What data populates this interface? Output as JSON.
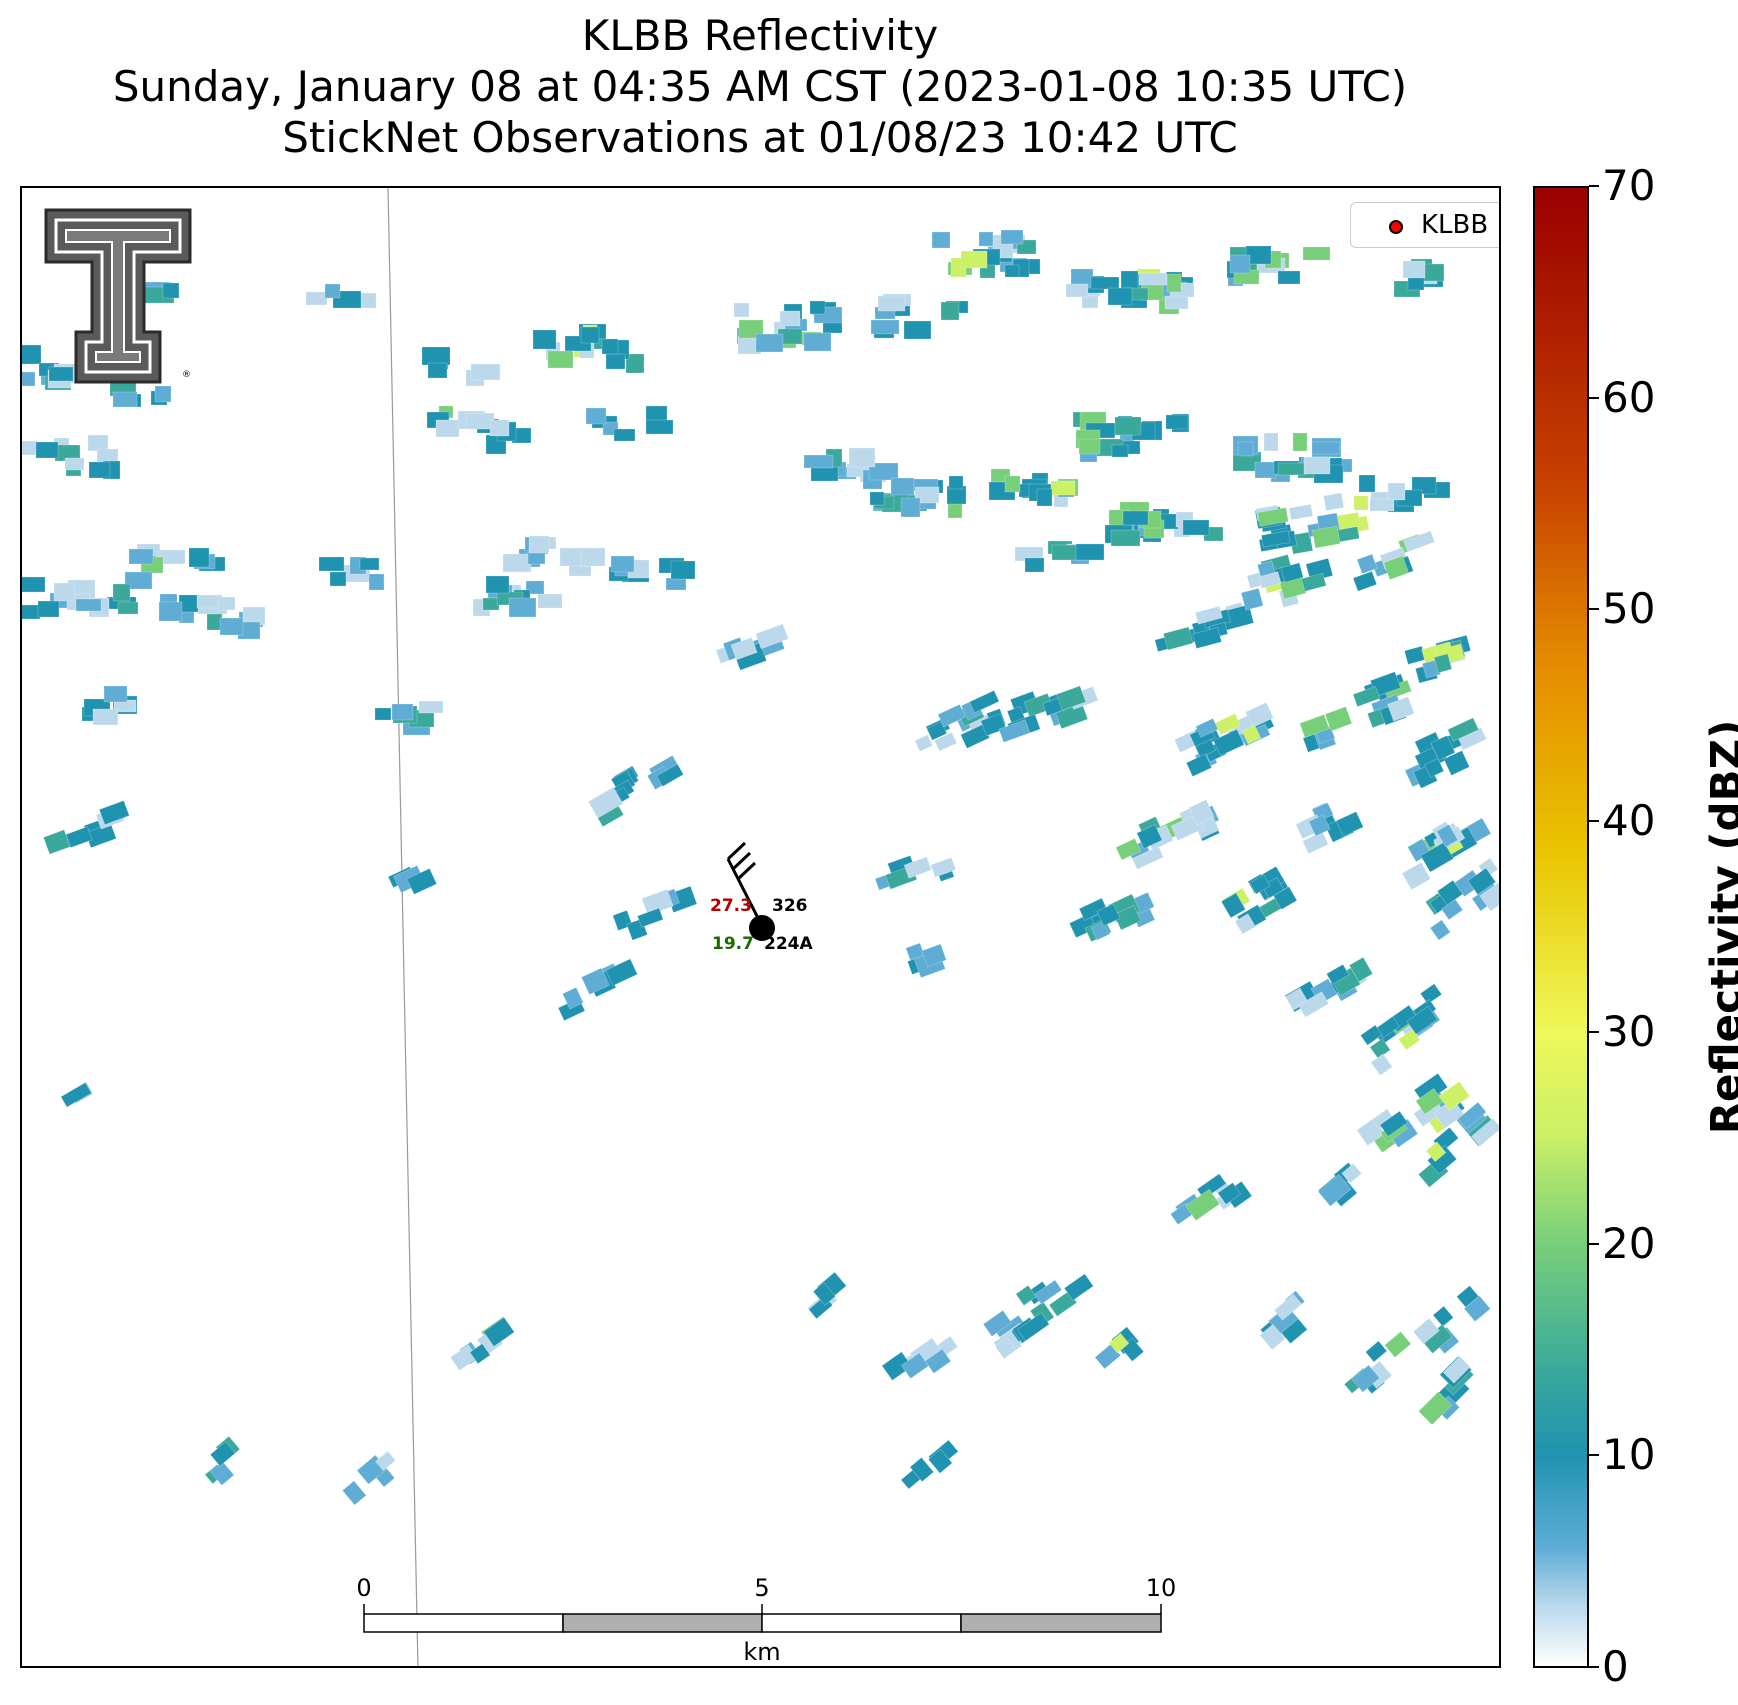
{
  "title": {
    "line1": "KLBB Reflectivity",
    "line2": "Sunday, January 08 at 04:35 AM CST (2023-01-08 10:35 UTC)",
    "line3": "StickNet Observations at 01/08/23 10:42 UTC"
  },
  "legend": {
    "label": "KLBB",
    "marker_color": "#ff0000"
  },
  "logo": {
    "name": "Texas Tech double-T logo",
    "mark": "®"
  },
  "station": {
    "temperature": "27.3",
    "pressure": "326",
    "dewpoint": "19.7",
    "id": "224A",
    "wind_barb": "flag-barb"
  },
  "scalebar": {
    "ticks": [
      "0",
      "5",
      "10"
    ],
    "unit": "km"
  },
  "colorbar": {
    "title": "Reflectivity (dBZ)",
    "ticks": [
      "0",
      "10",
      "20",
      "30",
      "40",
      "50",
      "60",
      "70"
    ],
    "min": 0,
    "max": 70
  },
  "colors": {
    "light_blue": "#bcd9ec",
    "blue": "#5fadd5",
    "teal": "#2093b0",
    "green_teal": "#3aa99c",
    "green": "#78cf7a",
    "yellow_green": "#ccf066",
    "temp_text": "#b00000",
    "dew_text": "#1a6a00"
  }
}
